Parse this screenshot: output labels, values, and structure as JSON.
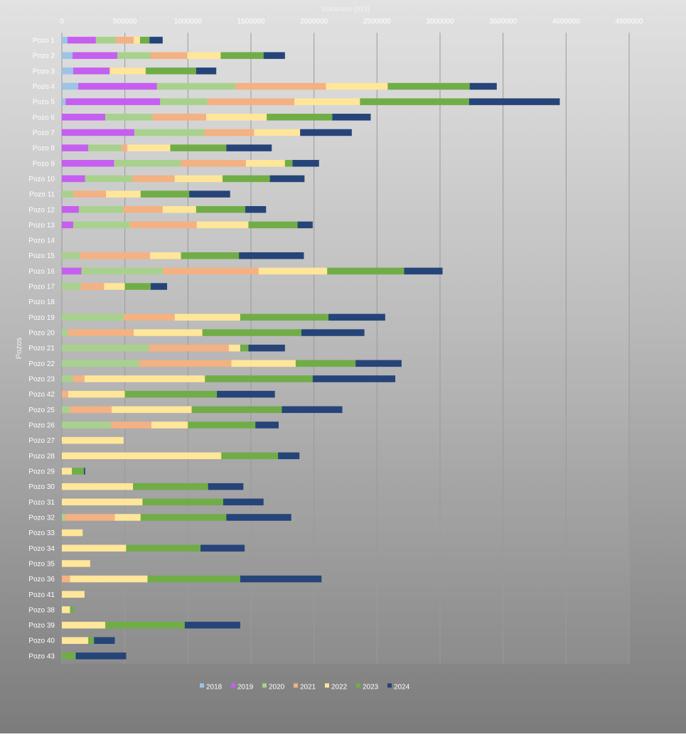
{
  "chart_data": {
    "type": "bar",
    "orientation": "horizontal",
    "stacked": true,
    "title": "",
    "xlabel": "Volumen (m3)",
    "ylabel": "Pozos",
    "xlim": [
      0,
      4500000
    ],
    "xticks": [
      "0",
      "500000",
      "1000000",
      "1500000",
      "2000000",
      "2500000",
      "3000000",
      "3500000",
      "4000000",
      "4500000"
    ],
    "grid": "vertical",
    "legend_position": "bottom",
    "categories": [
      "Pozo 1",
      "Pozo 2",
      "Pozo 3",
      "Pozo 4",
      "Pozo 5",
      "Pozo 6",
      "Pozo 7",
      "Pozo 8",
      "Pozo 9",
      "Pozo 10",
      "Pozo 11",
      "Pozo 12",
      "Pozo 13",
      "Pozo 14",
      "Pozo 15",
      "Pozo 16",
      "Pozo 17",
      "Pozo 18",
      "Pozo 19",
      "Pozo 20",
      "Pozo 21",
      "Pozo 22",
      "Pozo 23",
      "Pozo 42",
      "Pozo 25",
      "Pozo 26",
      "Pozo 27",
      "Pozo 28",
      "Pozo 29",
      "Pozo 30",
      "Pozo 31",
      "Pozo 32",
      "Pozo 33",
      "Pozo 34",
      "Pozo 35",
      "Pozo 36",
      "Pozo 41",
      "Pozo 38",
      "Pozo 39",
      "Pozo 40",
      "Pozo 43"
    ],
    "series": [
      {
        "name": "2018",
        "color": "#9dc3e6",
        "values": [
          45000,
          85000,
          90000,
          130000,
          30000,
          0,
          0,
          0,
          0,
          0,
          0,
          0,
          0,
          0,
          0,
          0,
          0,
          0,
          0,
          0,
          0,
          0,
          0,
          0,
          0,
          0,
          0,
          0,
          0,
          0,
          0,
          0,
          0,
          0,
          0,
          0,
          0,
          0,
          0,
          0,
          0
        ]
      },
      {
        "name": "2019",
        "color": "#c55ff0",
        "values": [
          225000,
          355000,
          290000,
          625000,
          750000,
          345000,
          575000,
          210000,
          415000,
          185000,
          0,
          135000,
          90000,
          0,
          0,
          155000,
          0,
          0,
          0,
          0,
          0,
          0,
          0,
          0,
          0,
          0,
          0,
          0,
          0,
          0,
          0,
          0,
          0,
          0,
          0,
          0,
          0,
          0,
          0,
          0,
          0
        ]
      },
      {
        "name": "2020",
        "color": "#a9d18e",
        "values": [
          160000,
          265000,
          0,
          625000,
          375000,
          375000,
          555000,
          265000,
          530000,
          375000,
          90000,
          355000,
          450000,
          0,
          140000,
          645000,
          150000,
          0,
          490000,
          50000,
          690000,
          615000,
          90000,
          0,
          65000,
          390000,
          0,
          0,
          0,
          0,
          0,
          25000,
          0,
          0,
          0,
          0,
          0,
          0,
          0,
          0,
          0
        ]
      },
      {
        "name": "2021",
        "color": "#f4b183",
        "values": [
          140000,
          290000,
          0,
          715000,
          690000,
          425000,
          395000,
          45000,
          515000,
          335000,
          260000,
          310000,
          530000,
          0,
          560000,
          760000,
          185000,
          0,
          405000,
          520000,
          635000,
          730000,
          90000,
          50000,
          330000,
          320000,
          0,
          0,
          0,
          0,
          0,
          395000,
          0,
          0,
          0,
          65000,
          0,
          0,
          0,
          0,
          0
        ]
      },
      {
        "name": "2022",
        "color": "#ffe699",
        "values": [
          50000,
          265000,
          285000,
          490000,
          520000,
          480000,
          365000,
          340000,
          310000,
          380000,
          275000,
          265000,
          410000,
          0,
          245000,
          545000,
          165000,
          0,
          520000,
          545000,
          90000,
          510000,
          955000,
          450000,
          635000,
          290000,
          490000,
          1265000,
          80000,
          565000,
          640000,
          205000,
          165000,
          510000,
          225000,
          615000,
          180000,
          65000,
          345000,
          210000,
          0
        ]
      },
      {
        "name": "2023",
        "color": "#70ad47",
        "values": [
          75000,
          340000,
          400000,
          650000,
          865000,
          520000,
          0,
          445000,
          60000,
          375000,
          385000,
          390000,
          390000,
          0,
          460000,
          610000,
          205000,
          0,
          700000,
          785000,
          65000,
          475000,
          855000,
          730000,
          715000,
          535000,
          0,
          450000,
          95000,
          595000,
          640000,
          680000,
          0,
          590000,
          0,
          735000,
          0,
          30000,
          630000,
          45000,
          110000
        ]
      },
      {
        "name": "2024",
        "color": "#264478",
        "values": [
          105000,
          170000,
          160000,
          215000,
          720000,
          305000,
          410000,
          360000,
          210000,
          275000,
          325000,
          165000,
          120000,
          0,
          515000,
          305000,
          130000,
          0,
          450000,
          500000,
          290000,
          365000,
          655000,
          460000,
          480000,
          185000,
          0,
          170000,
          10000,
          280000,
          320000,
          515000,
          0,
          350000,
          0,
          645000,
          0,
          0,
          440000,
          165000,
          400000
        ]
      }
    ]
  }
}
